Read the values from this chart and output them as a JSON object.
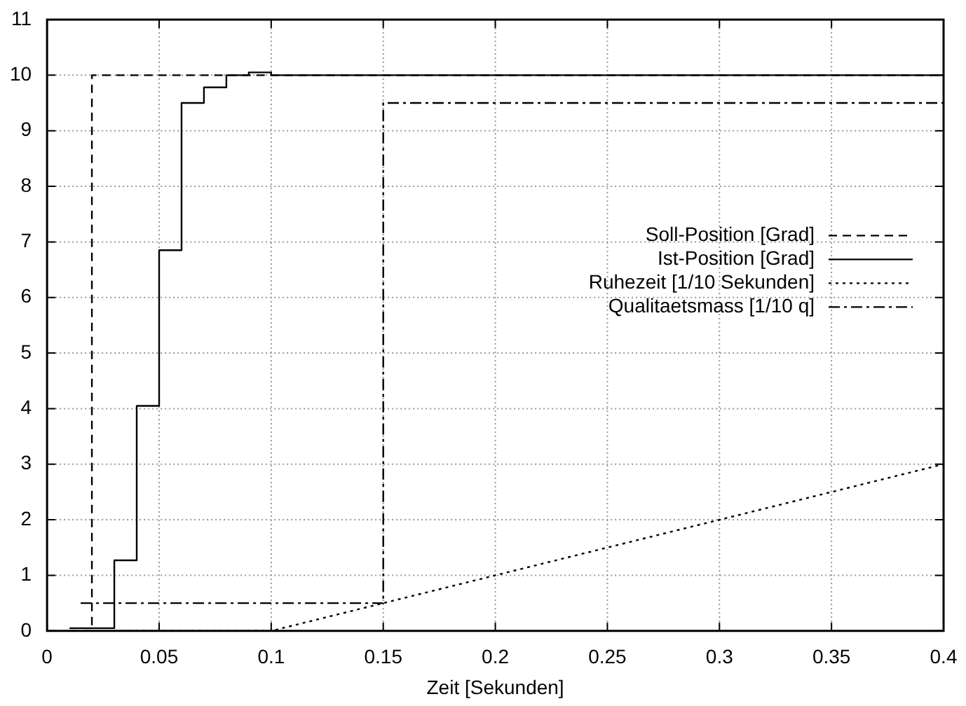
{
  "chart_data": {
    "type": "line",
    "xlabel": "Zeit [Sekunden]",
    "xlim": [
      0,
      0.4
    ],
    "xticks": [
      0,
      0.05,
      0.1,
      0.15,
      0.2,
      0.25,
      0.3,
      0.35,
      0.4
    ],
    "ylim": [
      0,
      11
    ],
    "yticks": [
      0,
      1,
      2,
      3,
      4,
      5,
      6,
      7,
      8,
      9,
      10,
      11
    ],
    "grid": true,
    "legend": "right",
    "marker": "none",
    "series": [
      {
        "name": "Soll-Position [Grad]",
        "color": "#000000",
        "line_style": "dashed",
        "x": [
          0.01,
          0.02,
          0.02,
          0.4
        ],
        "values": [
          0,
          0,
          10,
          10
        ]
      },
      {
        "name": "Ist-Position [Grad]",
        "color": "#000000",
        "line_style": "solid",
        "type": "step",
        "x": [
          0.01,
          0.03,
          0.04,
          0.05,
          0.06,
          0.07,
          0.08,
          0.09,
          0.1,
          0.4
        ],
        "values": [
          0.05,
          1.27,
          4.05,
          6.85,
          9.5,
          9.78,
          10,
          10.05,
          10,
          10
        ]
      },
      {
        "name": "Ruhezeit [1/10 Sekunden]",
        "color": "#000000",
        "line_style": "dotted",
        "x": [
          0.03,
          0.1,
          0.15,
          0.2,
          0.4
        ],
        "values": [
          0,
          0,
          0.5,
          1,
          3
        ]
      },
      {
        "name": "Qualitaetsmass [1/10 q]",
        "color": "#000000",
        "line_style": "dashdot",
        "x": [
          0.015,
          0.15,
          0.15,
          0.4
        ],
        "values": [
          0.5,
          0.5,
          9.5,
          9.5
        ]
      }
    ]
  }
}
